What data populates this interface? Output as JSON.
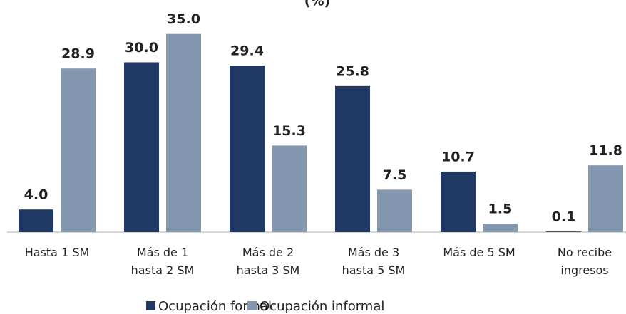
{
  "chart_data": {
    "type": "bar",
    "title": "(%)",
    "categories": [
      "Hasta 1 SM",
      "Más de 1\nhasta 2 SM",
      "Más de 2\nhasta 3 SM",
      "Más de 3\nhasta 5 SM",
      "Más de 5 SM",
      "No recibe\ningresos"
    ],
    "series": [
      {
        "name": "Ocupación formal",
        "color": "#1f3864",
        "values": [
          4.0,
          30.0,
          29.4,
          25.8,
          10.7,
          0.1
        ],
        "value_labels": [
          "4.0",
          "30.0",
          "29.4",
          "25.8",
          "10.7",
          "0.1"
        ]
      },
      {
        "name": "Ocupación informal",
        "color": "#8497b0",
        "values": [
          28.9,
          35.0,
          15.3,
          7.5,
          1.5,
          11.8
        ],
        "value_labels": [
          "28.9",
          "35.0",
          "15.3",
          "7.5",
          "1.5",
          "11.8"
        ]
      }
    ],
    "ylim": [
      0,
      41
    ],
    "legend": "bottom"
  }
}
